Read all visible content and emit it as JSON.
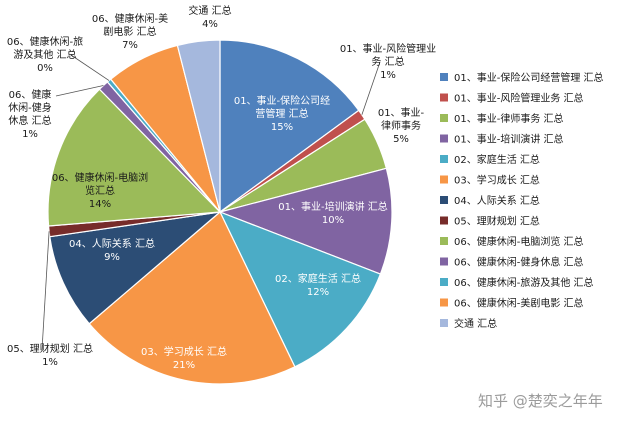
{
  "chart_data": {
    "type": "pie",
    "title": "",
    "slices": [
      {
        "name": "01、事业-保险公司经营管理 汇总",
        "label_lines": [
          "01、事业-保险公司经",
          "营管理 汇总",
          "15%"
        ],
        "value": 15,
        "color": "#4F81BD"
      },
      {
        "name": "01、事业-风险管理业务 汇总",
        "label_lines": [
          "01、事业-风险管理业",
          "务 汇总",
          "1%"
        ],
        "value": 1,
        "color": "#C0504D"
      },
      {
        "name": "01、事业-律师事务 汇总",
        "label_lines": [
          "01、事业-",
          "律师事务",
          "5%"
        ],
        "value": 5,
        "color": "#9BBB59"
      },
      {
        "name": "01、事业-培训演讲 汇总",
        "label_lines": [
          "01、事业-培训演讲 汇总",
          "10%"
        ],
        "value": 10,
        "color": "#8064A2"
      },
      {
        "name": "02、家庭生活 汇总",
        "label_lines": [
          "02、家庭生活 汇总",
          "12%"
        ],
        "value": 12,
        "color": "#4BACC6"
      },
      {
        "name": "03、学习成长 汇总",
        "label_lines": [
          "03、学习成长 汇总",
          "21%"
        ],
        "value": 21,
        "color": "#F79646"
      },
      {
        "name": "04、人际关系 汇总",
        "label_lines": [
          "04、人际关系 汇总",
          "9%"
        ],
        "value": 9,
        "color": "#2C4D75"
      },
      {
        "name": "05、理财规划 汇总",
        "label_lines": [
          "05、理财规划 汇总",
          "1%"
        ],
        "value": 1,
        "color": "#772C2A"
      },
      {
        "name": "06、健康休闲-电脑浏览 汇总",
        "label_lines": [
          "06、健康休闲-电脑浏",
          "览汇总",
          "14%"
        ],
        "value": 14,
        "color": "#9BBB59"
      },
      {
        "name": "06、健康休闲-健身休息 汇总",
        "label_lines": [
          "06、健康",
          "休闲-健身",
          "休息 汇总",
          "1%"
        ],
        "value": 1,
        "color": "#8064A2"
      },
      {
        "name": "06、健康休闲-旅游及其他 汇总",
        "label_lines": [
          "06、健康休闲-旅",
          "游及其他 汇总",
          "0%"
        ],
        "value": 0.4,
        "color": "#4BACC6"
      },
      {
        "name": "06、健康休闲-美剧电影 汇总",
        "label_lines": [
          "06、健康休闲-美",
          "剧电影 汇总",
          "7%"
        ],
        "value": 7,
        "color": "#F79646"
      },
      {
        "name": "交通 汇总",
        "label_lines": [
          "交通 汇总",
          "4%"
        ],
        "value": 4,
        "color": "#A5B8DD"
      }
    ],
    "legend_entries": [
      "01、事业-保险公司经营管理 汇总",
      "01、事业-风险管理业务 汇总",
      "01、事业-律师事务 汇总",
      "01、事业-培训演讲 汇总",
      "02、家庭生活 汇总",
      "03、学习成长 汇总",
      "04、人际关系 汇总",
      "05、理财规划 汇总",
      "06、健康休闲-电脑浏览 汇总",
      "06、健康休闲-健身休息 汇总",
      "06、健康休闲-旅游及其他 汇总",
      "06、健康休闲-美剧电影 汇总",
      "交通 汇总"
    ],
    "legend_position": "right",
    "start_direction": "top",
    "direction": "clockwise"
  },
  "watermark": "知乎 @楚奕之年年"
}
